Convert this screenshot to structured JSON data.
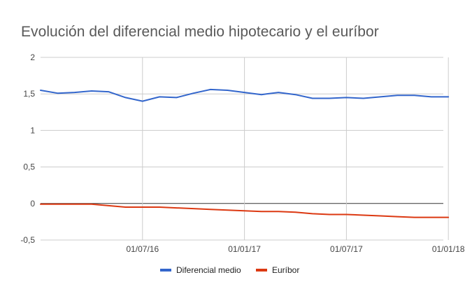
{
  "chart_data": {
    "type": "line",
    "title": "Evolución del diferencial medio hipotecario y el euríbor",
    "xlabel": "",
    "ylabel": "",
    "ylim": [
      -0.5,
      2
    ],
    "yticks": [
      {
        "value": 2,
        "label": "2"
      },
      {
        "value": 1.5,
        "label": "1,5"
      },
      {
        "value": 1,
        "label": "1"
      },
      {
        "value": 0.5,
        "label": "0,5"
      },
      {
        "value": 0,
        "label": "0"
      },
      {
        "value": -0.5,
        "label": "-0,5"
      }
    ],
    "x": [
      "2016-01",
      "2016-02",
      "2016-03",
      "2016-04",
      "2016-05",
      "2016-06",
      "2016-07",
      "2016-08",
      "2016-09",
      "2016-10",
      "2016-11",
      "2016-12",
      "2017-01",
      "2017-02",
      "2017-03",
      "2017-04",
      "2017-05",
      "2017-06",
      "2017-07",
      "2017-08",
      "2017-09",
      "2017-10",
      "2017-11",
      "2017-12",
      "2018-01"
    ],
    "xticks": [
      {
        "x": "2016-07-01",
        "label": "01/07/16"
      },
      {
        "x": "2017-01-01",
        "label": "01/01/17"
      },
      {
        "x": "2017-07-01",
        "label": "01/07/17"
      },
      {
        "x": "2018-01-01",
        "label": "01/01/18"
      }
    ],
    "grid": true,
    "legend_position": "bottom",
    "series": [
      {
        "name": "Diferencial medio",
        "color": "#3366cc",
        "values": [
          1.55,
          1.51,
          1.52,
          1.54,
          1.53,
          1.45,
          1.4,
          1.46,
          1.45,
          1.51,
          1.56,
          1.55,
          1.52,
          1.49,
          1.52,
          1.49,
          1.44,
          1.44,
          1.45,
          1.44,
          1.46,
          1.48,
          1.48,
          1.46,
          1.46
        ]
      },
      {
        "name": "Euríbor",
        "color": "#dc3912",
        "values": [
          -0.01,
          -0.01,
          -0.01,
          -0.01,
          -0.03,
          -0.05,
          -0.05,
          -0.05,
          -0.06,
          -0.07,
          -0.08,
          -0.09,
          -0.1,
          -0.11,
          -0.11,
          -0.12,
          -0.14,
          -0.15,
          -0.15,
          -0.16,
          -0.17,
          -0.18,
          -0.19,
          -0.19,
          -0.19
        ]
      }
    ]
  }
}
